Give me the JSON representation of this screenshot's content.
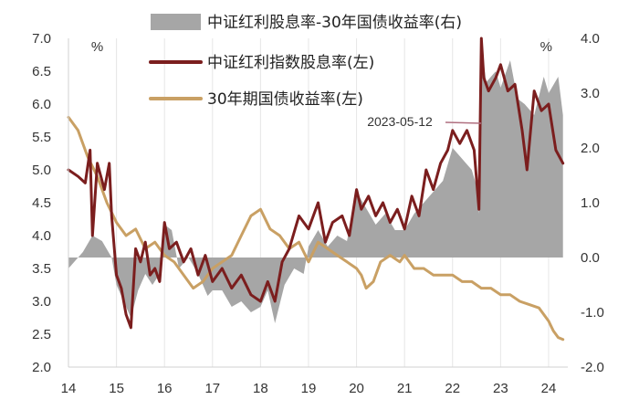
{
  "chart_data": {
    "type": "line",
    "x_ticks": [
      "14",
      "15",
      "16",
      "17",
      "18",
      "19",
      "20",
      "21",
      "22",
      "23",
      "24"
    ],
    "y_left_ticks": [
      "7.0",
      "6.5",
      "6.0",
      "5.5",
      "5.0",
      "4.5",
      "4.0",
      "3.5",
      "3.0",
      "2.5",
      "2.0"
    ],
    "y_right_ticks": [
      "4.0",
      "3.0",
      "2.0",
      "1.0",
      "0.0",
      "-1.0",
      "-2.0"
    ],
    "y_left_unit": "%",
    "y_right_unit": "%",
    "ylim_left": [
      2.0,
      7.0
    ],
    "ylim_right": [
      -2.0,
      4.0
    ],
    "xlim": [
      2014.0,
      2024.4
    ],
    "grid": "vertical",
    "legend_position": "top",
    "colors": {
      "spread": "#a6a6a6",
      "dividend": "#7b1e1e",
      "bond": "#c9a064"
    },
    "series": [
      {
        "name": "中证红利股息率-30年国债收益率(右)",
        "kind": "area",
        "axis": "right",
        "color": "#a6a6a6",
        "x": [
          2014.0,
          2014.3,
          2014.5,
          2014.7,
          2014.9,
          2015.0,
          2015.15,
          2015.3,
          2015.45,
          2015.6,
          2015.75,
          2015.9,
          2016.0,
          2016.15,
          2016.3,
          2016.5,
          2016.7,
          2016.9,
          2017.0,
          2017.2,
          2017.4,
          2017.6,
          2017.8,
          2018.0,
          2018.15,
          2018.3,
          2018.5,
          2018.7,
          2018.9,
          2019.0,
          2019.2,
          2019.4,
          2019.6,
          2019.8,
          2020.0,
          2020.2,
          2020.4,
          2020.6,
          2020.8,
          2021.0,
          2021.2,
          2021.4,
          2021.6,
          2021.8,
          2022.0,
          2022.2,
          2022.4,
          2022.5,
          2022.55,
          2022.6,
          2022.7,
          2022.9,
          2023.0,
          2023.2,
          2023.35,
          2023.5,
          2023.7,
          2023.9,
          2024.0,
          2024.2,
          2024.3
        ],
        "y": [
          -0.2,
          0.1,
          0.4,
          0.3,
          0.0,
          -0.5,
          -0.8,
          -1.1,
          -0.6,
          -0.3,
          -0.5,
          -0.3,
          0.6,
          0.5,
          -0.2,
          0.0,
          -0.3,
          -0.7,
          -0.6,
          -0.6,
          -0.9,
          -0.8,
          -1.0,
          -0.9,
          -0.6,
          -1.2,
          -0.5,
          -0.2,
          -0.3,
          0.2,
          0.5,
          0.2,
          0.4,
          0.3,
          1.2,
          0.9,
          0.6,
          0.8,
          0.5,
          0.5,
          0.8,
          1.0,
          1.2,
          1.4,
          2.0,
          1.8,
          1.6,
          1.3,
          0.8,
          3.9,
          3.2,
          3.4,
          3.1,
          3.6,
          2.9,
          2.8,
          2.6,
          3.3,
          3.0,
          3.3,
          2.6
        ]
      },
      {
        "name": "中证红利指数股息率(左)",
        "kind": "line",
        "axis": "left",
        "color": "#7b1e1e",
        "x": [
          2014.0,
          2014.2,
          2014.35,
          2014.45,
          2014.5,
          2014.6,
          2014.75,
          2014.85,
          2014.9,
          2015.0,
          2015.1,
          2015.2,
          2015.3,
          2015.4,
          2015.5,
          2015.6,
          2015.7,
          2015.8,
          2015.9,
          2016.0,
          2016.1,
          2016.25,
          2016.4,
          2016.55,
          2016.7,
          2016.85,
          2017.0,
          2017.2,
          2017.4,
          2017.6,
          2017.8,
          2018.0,
          2018.15,
          2018.3,
          2018.45,
          2018.6,
          2018.8,
          2019.0,
          2019.2,
          2019.35,
          2019.5,
          2019.7,
          2019.85,
          2020.0,
          2020.1,
          2020.25,
          2020.4,
          2020.55,
          2020.7,
          2020.85,
          2021.0,
          2021.15,
          2021.3,
          2021.45,
          2021.6,
          2021.75,
          2021.9,
          2022.0,
          2022.15,
          2022.3,
          2022.45,
          2022.55,
          2022.6,
          2022.65,
          2022.75,
          2022.9,
          2023.0,
          2023.15,
          2023.3,
          2023.45,
          2023.55,
          2023.7,
          2023.85,
          2024.0,
          2024.15,
          2024.3
        ],
        "y": [
          5.0,
          4.9,
          4.8,
          5.3,
          4.0,
          5.1,
          4.7,
          5.1,
          4.3,
          3.4,
          3.2,
          2.8,
          2.6,
          3.8,
          3.6,
          3.9,
          3.4,
          3.5,
          3.3,
          4.2,
          3.8,
          3.9,
          3.6,
          3.8,
          3.4,
          3.7,
          3.3,
          3.5,
          3.2,
          3.4,
          3.1,
          3.0,
          3.3,
          3.0,
          3.6,
          3.8,
          4.3,
          4.1,
          4.5,
          3.9,
          4.2,
          4.3,
          4.0,
          4.7,
          4.4,
          4.6,
          4.3,
          4.5,
          4.2,
          4.4,
          4.1,
          4.6,
          4.3,
          5.0,
          4.7,
          5.1,
          5.3,
          5.6,
          5.4,
          5.6,
          5.3,
          4.4,
          7.0,
          6.4,
          6.2,
          6.4,
          6.6,
          6.2,
          6.3,
          5.6,
          5.0,
          6.2,
          5.9,
          6.0,
          5.3,
          5.1
        ]
      },
      {
        "name": "30年期国债收益率(左)",
        "kind": "line",
        "axis": "left",
        "color": "#c9a064",
        "x": [
          2014.0,
          2014.2,
          2014.4,
          2014.6,
          2014.8,
          2015.0,
          2015.2,
          2015.4,
          2015.6,
          2015.8,
          2016.0,
          2016.2,
          2016.4,
          2016.6,
          2016.8,
          2017.0,
          2017.2,
          2017.4,
          2017.6,
          2017.8,
          2018.0,
          2018.2,
          2018.4,
          2018.6,
          2018.8,
          2019.0,
          2019.2,
          2019.4,
          2019.6,
          2019.8,
          2020.0,
          2020.1,
          2020.2,
          2020.35,
          2020.5,
          2020.7,
          2020.9,
          2021.0,
          2021.2,
          2021.4,
          2021.6,
          2021.8,
          2022.0,
          2022.2,
          2022.4,
          2022.6,
          2022.8,
          2023.0,
          2023.2,
          2023.4,
          2023.6,
          2023.8,
          2024.0,
          2024.1,
          2024.2,
          2024.3
        ],
        "y": [
          5.8,
          5.6,
          5.2,
          4.9,
          4.5,
          4.2,
          4.0,
          4.1,
          3.8,
          3.9,
          3.7,
          3.6,
          3.4,
          3.2,
          3.3,
          3.5,
          3.6,
          3.7,
          4.0,
          4.3,
          4.4,
          4.1,
          4.0,
          3.8,
          3.9,
          3.6,
          3.9,
          3.8,
          3.7,
          3.6,
          3.5,
          3.4,
          3.2,
          3.3,
          3.6,
          3.7,
          3.6,
          3.7,
          3.5,
          3.5,
          3.4,
          3.4,
          3.4,
          3.3,
          3.3,
          3.2,
          3.2,
          3.1,
          3.1,
          3.0,
          2.95,
          2.9,
          2.7,
          2.55,
          2.45,
          2.42
        ]
      }
    ],
    "annotations": [
      {
        "text": "2023-05-12"
      }
    ]
  }
}
